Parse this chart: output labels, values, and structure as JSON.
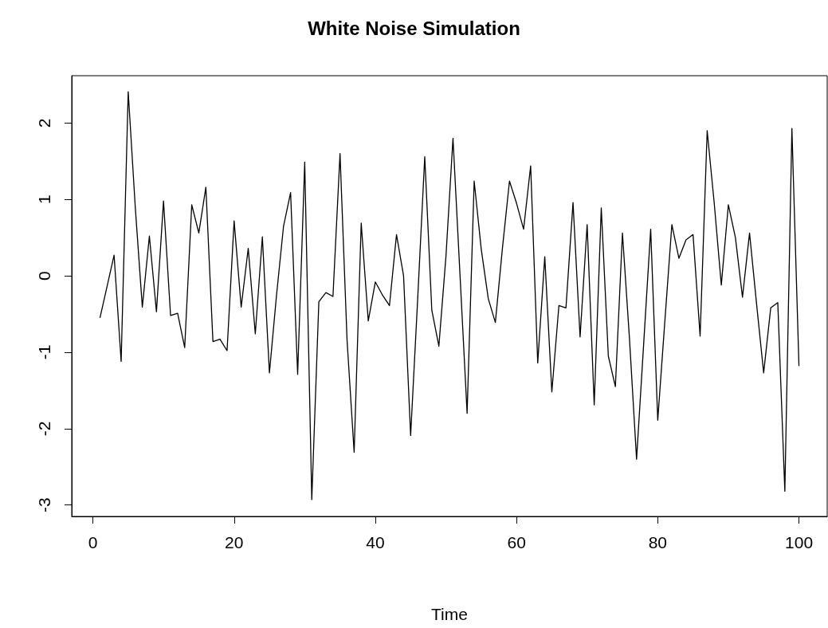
{
  "chart_data": {
    "type": "line",
    "title": "White Noise Simulation",
    "xlabel": "Time",
    "x": [
      1,
      2,
      3,
      4,
      5,
      6,
      7,
      8,
      9,
      10,
      11,
      12,
      13,
      14,
      15,
      16,
      17,
      18,
      19,
      20,
      21,
      22,
      23,
      24,
      25,
      26,
      27,
      28,
      29,
      30,
      31,
      32,
      33,
      34,
      35,
      36,
      37,
      38,
      39,
      40,
      41,
      42,
      43,
      44,
      45,
      46,
      47,
      48,
      49,
      50,
      51,
      52,
      53,
      54,
      55,
      56,
      57,
      58,
      59,
      60,
      61,
      62,
      63,
      64,
      65,
      66,
      67,
      68,
      69,
      70,
      71,
      72,
      73,
      74,
      75,
      76,
      77,
      78,
      79,
      80,
      81,
      82,
      83,
      84,
      85,
      86,
      87,
      88,
      89,
      90,
      91,
      92,
      93,
      94,
      95,
      96,
      97,
      98,
      99,
      100
    ],
    "series": [
      {
        "color": "#000000",
        "values": [
          -0.55,
          -0.14,
          0.27,
          -1.12,
          2.41,
          0.9,
          -0.41,
          0.52,
          -0.47,
          0.98,
          -0.52,
          -0.49,
          -0.94,
          0.93,
          0.56,
          1.16,
          -0.86,
          -0.83,
          -0.98,
          0.72,
          -0.41,
          0.36,
          -0.76,
          0.51,
          -1.27,
          -0.26,
          0.65,
          1.09,
          -1.29,
          1.49,
          -2.93,
          -0.34,
          -0.22,
          -0.27,
          1.6,
          -0.85,
          -2.31,
          0.69,
          -0.59,
          -0.08,
          -0.25,
          -0.39,
          0.54,
          0.0,
          -2.09,
          -0.3,
          1.56,
          -0.45,
          -0.92,
          0.25,
          1.8,
          0.0,
          -1.8,
          1.24,
          0.35,
          -0.3,
          -0.61,
          0.36,
          1.24,
          0.95,
          0.61,
          1.44,
          -1.14,
          0.25,
          -1.52,
          -0.39,
          -0.42,
          0.96,
          -0.8,
          0.67,
          -1.69,
          0.89,
          -1.05,
          -1.45,
          0.56,
          -0.83,
          -2.4,
          -0.9,
          0.61,
          -1.89,
          -0.6,
          0.67,
          0.23,
          0.47,
          0.54,
          -0.79,
          1.9,
          0.95,
          -0.12,
          0.93,
          0.5,
          -0.28,
          0.56,
          -0.37,
          -1.27,
          -0.42,
          -0.35,
          -2.82,
          1.93,
          -1.18
        ]
      }
    ],
    "xlim": [
      -3,
      104
    ],
    "xticks": [
      0,
      20,
      40,
      60,
      80,
      100
    ],
    "ylim": [
      -3.15,
      2.62
    ],
    "yticks": [
      -3,
      -2,
      -1,
      0,
      1,
      2
    ],
    "legend": false,
    "marker": "none",
    "line_style": "solid"
  }
}
